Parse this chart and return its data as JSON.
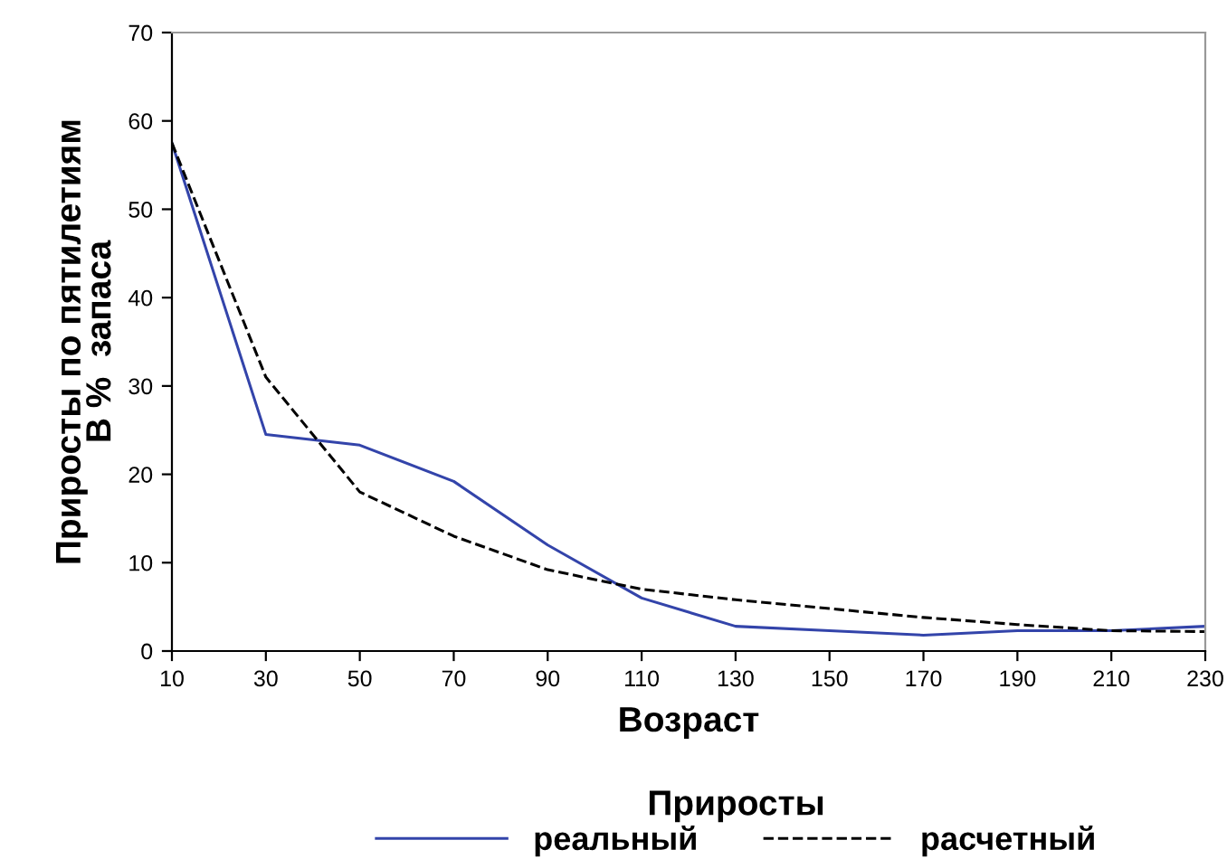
{
  "chart_data": {
    "type": "line",
    "xlabel": "Возраст",
    "ylabel": "Приросты по пятилетиям\nВ %  запаса",
    "legend_title": "Приросты",
    "x": [
      10,
      30,
      50,
      70,
      90,
      110,
      130,
      150,
      170,
      190,
      210,
      230
    ],
    "series": [
      {
        "name": "реальный",
        "color": "#3344aa",
        "line_style": "solid",
        "values": [
          57.5,
          24.5,
          23.3,
          19.2,
          12,
          6,
          2.8,
          2.3,
          1.8,
          2.3,
          2.3,
          2.8
        ]
      },
      {
        "name": "расчетный",
        "color": "#000000",
        "line_style": "dashed",
        "values": [
          57.5,
          31,
          18,
          13,
          9.2,
          7,
          5.8,
          4.8,
          3.8,
          3,
          2.3,
          2.2
        ]
      }
    ],
    "xlim": [
      10,
      230
    ],
    "xticks": [
      10,
      30,
      50,
      70,
      90,
      110,
      130,
      150,
      170,
      190,
      210,
      230
    ],
    "ylim": [
      0,
      70
    ],
    "yticks": [
      0,
      10,
      20,
      30,
      40,
      50,
      60,
      70
    ],
    "grid": false,
    "legend": "bottom",
    "marker": "none"
  }
}
